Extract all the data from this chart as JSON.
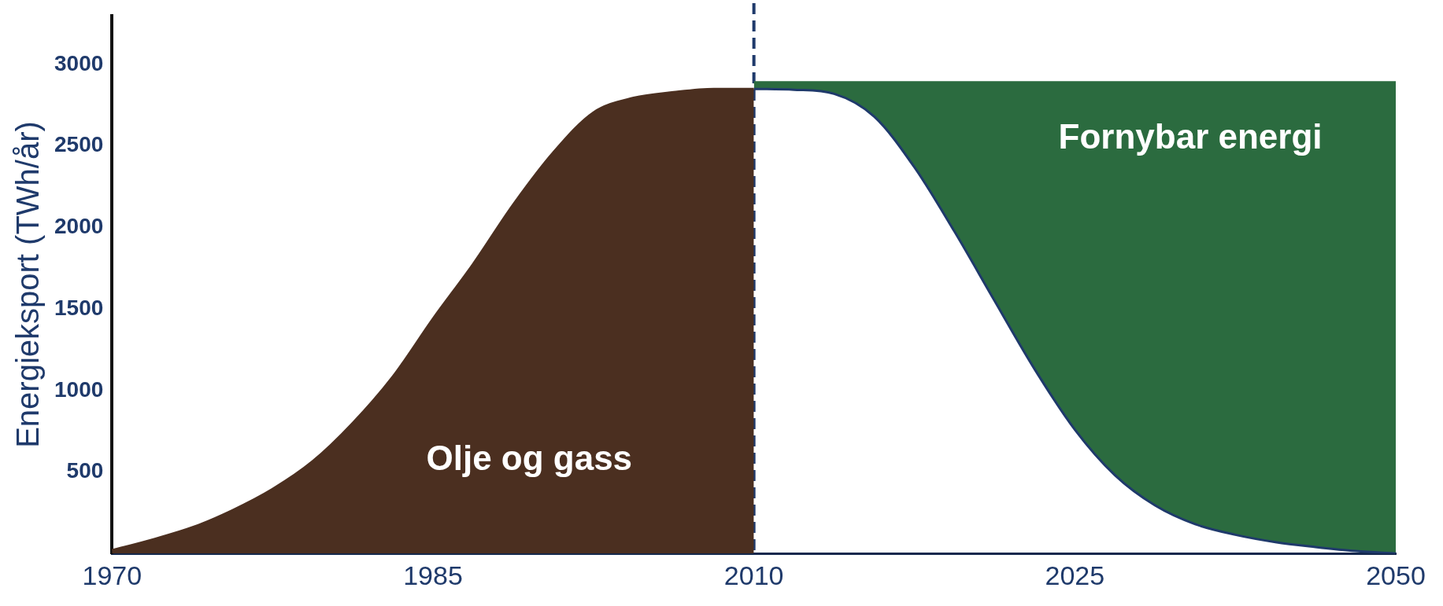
{
  "chart_data": {
    "type": "area",
    "ylabel": "Energieksport (TWh/år)",
    "categories": [
      "1970",
      null,
      null,
      null,
      null,
      null,
      null,
      null,
      "1985",
      null,
      null,
      null,
      null,
      null,
      null,
      null,
      "2010",
      null,
      null,
      null,
      null,
      null,
      null,
      null,
      "2025",
      null,
      null,
      null,
      null,
      null,
      null,
      null,
      "2050"
    ],
    "series": [
      {
        "name": "Olje og gass",
        "color": "#4b2f20",
        "values": [
          20,
          85,
          160,
          265,
          395,
          565,
          800,
          1085,
          1440,
          1775,
          2140,
          2460,
          2705,
          2795,
          2830,
          2850,
          2850,
          null,
          null,
          null,
          null,
          null,
          null,
          null,
          null,
          null,
          null,
          null,
          null,
          null,
          null,
          null,
          null
        ]
      },
      {
        "type": "line",
        "color": "#1f3a6b",
        "values": [
          null,
          null,
          null,
          null,
          null,
          null,
          null,
          null,
          null,
          null,
          null,
          null,
          null,
          null,
          null,
          null,
          2850,
          2845,
          2820,
          2680,
          2370,
          1975,
          1550,
          1130,
          760,
          480,
          295,
          180,
          115,
          70,
          40,
          15,
          0
        ]
      },
      {
        "name": "Fornybar energi",
        "color": "#2b6b3f",
        "values": [
          null,
          null,
          null,
          null,
          null,
          null,
          null,
          null,
          null,
          null,
          null,
          null,
          null,
          null,
          null,
          null,
          2890,
          2890,
          2890,
          2890,
          2890,
          2890,
          2890,
          2890,
          2890,
          2890,
          2890,
          2890,
          2890,
          2890,
          2890,
          2890,
          2890
        ]
      }
    ],
    "ylim": [
      0,
      3300
    ],
    "yticks": [
      500,
      1000,
      1500,
      2000,
      2500,
      3000
    ],
    "ref_lines": [
      {
        "axis": "x",
        "value": "2010",
        "color": "#1f3a6b",
        "line_style": "dashed"
      }
    ],
    "grid": false,
    "legend": false,
    "marker": "none"
  }
}
